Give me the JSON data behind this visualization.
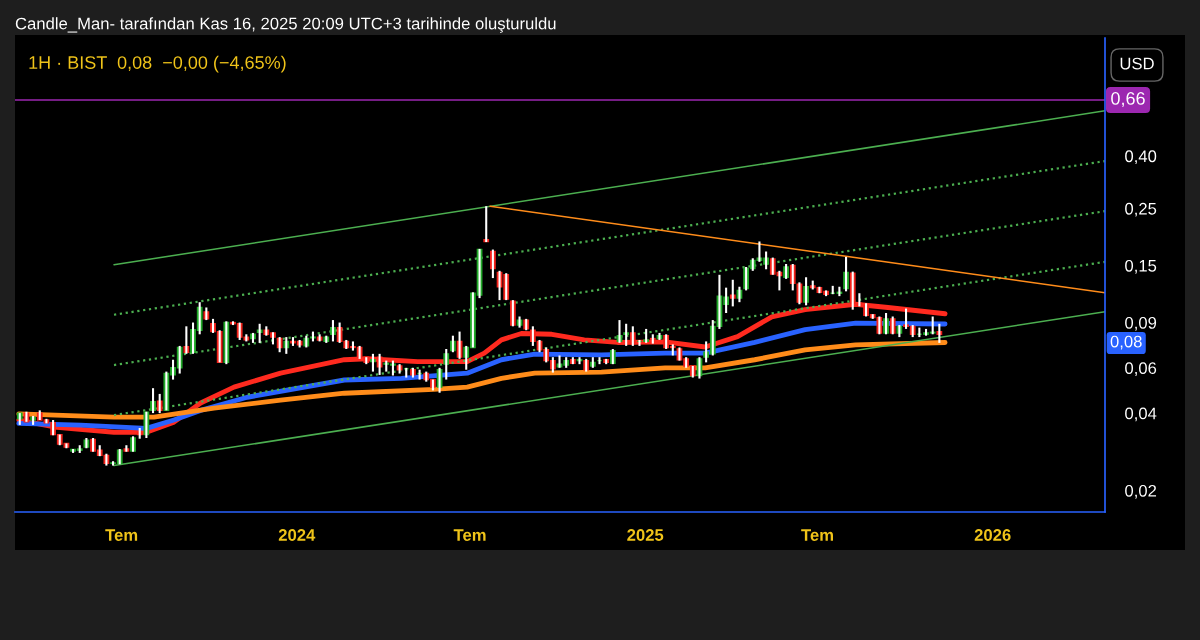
{
  "chart_data": {
    "type": "candlestick",
    "title": "1H · BIST  0,08  −0,00 (−4,65%)",
    "annotations": [
      "Candle_Man- tarafından Kas 16, 2025 20:09 UTC+3 tarihinde oluşturuldu",
      "USD",
      "0,08"
    ],
    "x": [
      "2023-03-16",
      "2023-03-23",
      "2023-03-30",
      "2023-04-06",
      "2023-04-13",
      "2023-04-20",
      "2023-04-27",
      "2023-05-04",
      "2023-05-11",
      "2023-05-18",
      "2023-05-25",
      "2023-06-01",
      "2023-06-08",
      "2023-06-15",
      "2023-06-22",
      "2023-06-29",
      "2023-07-06",
      "2023-07-13",
      "2023-07-20",
      "2023-07-27",
      "2023-08-03",
      "2023-08-10",
      "2023-08-17",
      "2023-08-24",
      "2023-08-31",
      "2023-09-07",
      "2023-09-14",
      "2023-09-21",
      "2023-09-28",
      "2023-10-05",
      "2023-10-12",
      "2023-10-19",
      "2023-10-26",
      "2023-11-02",
      "2023-11-09",
      "2023-11-16",
      "2023-11-23",
      "2023-11-30",
      "2023-12-07",
      "2023-12-14",
      "2023-12-21",
      "2023-12-28",
      "2024-01-04",
      "2024-01-11",
      "2024-01-18",
      "2024-01-25",
      "2024-02-01",
      "2024-02-08",
      "2024-02-15",
      "2024-02-22",
      "2024-02-29",
      "2024-03-07",
      "2024-03-14",
      "2024-03-21",
      "2024-03-28",
      "2024-04-04",
      "2024-04-11",
      "2024-04-18",
      "2024-04-25",
      "2024-05-02",
      "2024-05-09",
      "2024-05-16",
      "2024-05-23",
      "2024-05-30",
      "2024-06-06",
      "2024-06-13",
      "2024-06-20",
      "2024-06-27",
      "2024-07-04",
      "2024-07-11",
      "2024-07-18",
      "2024-07-25",
      "2024-08-01",
      "2024-08-08",
      "2024-08-15",
      "2024-08-22",
      "2024-08-29",
      "2024-09-05",
      "2024-09-12",
      "2024-09-19",
      "2024-09-26",
      "2024-10-03",
      "2024-10-10",
      "2024-10-17",
      "2024-10-24",
      "2024-10-31",
      "2024-11-07",
      "2024-11-14",
      "2024-11-21",
      "2024-11-28",
      "2024-12-05",
      "2024-12-12",
      "2024-12-19",
      "2024-12-26",
      "2025-01-02",
      "2025-01-09",
      "2025-01-16",
      "2025-01-23",
      "2025-01-30",
      "2025-02-06",
      "2025-02-13",
      "2025-02-20",
      "2025-02-27",
      "2025-03-06",
      "2025-03-13",
      "2025-03-20",
      "2025-03-27",
      "2025-04-03",
      "2025-04-10",
      "2025-04-17",
      "2025-04-24",
      "2025-05-01",
      "2025-05-08",
      "2025-05-15",
      "2025-05-22",
      "2025-05-29",
      "2025-06-05",
      "2025-06-12",
      "2025-06-19",
      "2025-06-26",
      "2025-07-03",
      "2025-07-10",
      "2025-07-17",
      "2025-07-24",
      "2025-07-31",
      "2025-08-07",
      "2025-08-14",
      "2025-08-21",
      "2025-08-28",
      "2025-09-04",
      "2025-09-11",
      "2025-09-18",
      "2025-09-25",
      "2025-10-02",
      "2025-10-09",
      "2025-10-16",
      "2025-10-23",
      "2025-10-30",
      "2025-11-06"
    ],
    "ohlc": [
      [
        0.038,
        0.04,
        0.036,
        0.04
      ],
      [
        0.04,
        0.0405,
        0.037,
        0.037
      ],
      [
        0.0376,
        0.039,
        0.036,
        0.0385
      ],
      [
        0.04,
        0.041,
        0.0376,
        0.0376
      ],
      [
        0.0376,
        0.038,
        0.0365,
        0.0367
      ],
      [
        0.0367,
        0.0376,
        0.0328,
        0.033
      ],
      [
        0.033,
        0.033,
        0.03,
        0.0303
      ],
      [
        0.0305,
        0.0305,
        0.0292,
        0.0295
      ],
      [
        0.0285,
        0.029,
        0.028,
        0.0289
      ],
      [
        0.0287,
        0.03,
        0.028,
        0.029
      ],
      [
        0.0295,
        0.032,
        0.0292,
        0.0314
      ],
      [
        0.0316,
        0.032,
        0.0283,
        0.0285
      ],
      [
        0.0287,
        0.03,
        0.0272,
        0.0274
      ],
      [
        0.0274,
        0.0278,
        0.025,
        0.0255
      ],
      [
        0.0255,
        0.026,
        0.025,
        0.0256
      ],
      [
        0.0255,
        0.029,
        0.0253,
        0.0287
      ],
      [
        0.029,
        0.03,
        0.0283,
        0.0285
      ],
      [
        0.0285,
        0.0325,
        0.0283,
        0.032
      ],
      [
        0.0335,
        0.035,
        0.0318,
        0.033
      ],
      [
        0.033,
        0.0405,
        0.032,
        0.0403
      ],
      [
        0.041,
        0.05,
        0.04,
        0.0443
      ],
      [
        0.0445,
        0.0475,
        0.04,
        0.041
      ],
      [
        0.041,
        0.058,
        0.041,
        0.057
      ],
      [
        0.0563,
        0.0645,
        0.054,
        0.06
      ],
      [
        0.06,
        0.073,
        0.057,
        0.072
      ],
      [
        0.0725,
        0.087,
        0.068,
        0.069
      ],
      [
        0.069,
        0.09,
        0.068,
        0.0844
      ],
      [
        0.084,
        0.108,
        0.081,
        0.103
      ],
      [
        0.099,
        0.103,
        0.092,
        0.093
      ],
      [
        0.089,
        0.093,
        0.082,
        0.083
      ],
      [
        0.083,
        0.084,
        0.063,
        0.063
      ],
      [
        0.063,
        0.091,
        0.062,
        0.09
      ],
      [
        0.09,
        0.091,
        0.088,
        0.089
      ],
      [
        0.089,
        0.09,
        0.077,
        0.079
      ],
      [
        0.079,
        0.081,
        0.076,
        0.0771
      ],
      [
        0.078,
        0.082,
        0.075,
        0.081
      ],
      [
        0.0825,
        0.089,
        0.075,
        0.084
      ],
      [
        0.084,
        0.087,
        0.08,
        0.081
      ],
      [
        0.082,
        0.0825,
        0.074,
        0.079
      ],
      [
        0.078,
        0.079,
        0.069,
        0.072
      ],
      [
        0.072,
        0.079,
        0.068,
        0.076
      ],
      [
        0.076,
        0.079,
        0.073,
        0.075
      ],
      [
        0.076,
        0.077,
        0.072,
        0.0737
      ],
      [
        0.073,
        0.08,
        0.072,
        0.078
      ],
      [
        0.0785,
        0.083,
        0.076,
        0.079
      ],
      [
        0.079,
        0.081,
        0.076,
        0.077
      ],
      [
        0.076,
        0.08,
        0.075,
        0.079
      ],
      [
        0.081,
        0.092,
        0.076,
        0.086
      ],
      [
        0.086,
        0.09,
        0.075,
        0.076
      ],
      [
        0.076,
        0.077,
        0.071,
        0.072
      ],
      [
        0.0725,
        0.076,
        0.07,
        0.072
      ],
      [
        0.072,
        0.073,
        0.065,
        0.066
      ],
      [
        0.066,
        0.066,
        0.062,
        0.063
      ],
      [
        0.0635,
        0.068,
        0.058,
        0.0645
      ],
      [
        0.066,
        0.068,
        0.0563,
        0.0605
      ],
      [
        0.062,
        0.064,
        0.058,
        0.0625
      ],
      [
        0.0615,
        0.064,
        0.056,
        0.062
      ],
      [
        0.061,
        0.062,
        0.057,
        0.059
      ],
      [
        0.0595,
        0.06,
        0.055,
        0.0595
      ],
      [
        0.059,
        0.06,
        0.055,
        0.0563
      ],
      [
        0.057,
        0.059,
        0.054,
        0.057
      ],
      [
        0.057,
        0.058,
        0.053,
        0.054
      ],
      [
        0.054,
        0.054,
        0.049,
        0.0505
      ],
      [
        0.0505,
        0.06,
        0.048,
        0.059
      ],
      [
        0.062,
        0.071,
        0.054,
        0.068
      ],
      [
        0.07,
        0.08,
        0.069,
        0.076
      ],
      [
        0.076,
        0.083,
        0.065,
        0.066
      ],
      [
        0.066,
        0.073,
        0.059,
        0.072
      ],
      [
        0.072,
        0.118,
        0.072,
        0.117
      ],
      [
        0.115,
        0.174,
        0.112,
        0.173
      ],
      [
        0.189,
        0.255,
        0.185,
        0.186
      ],
      [
        0.17,
        0.173,
        0.134,
        0.146
      ],
      [
        0.141,
        0.143,
        0.11,
        0.124
      ],
      [
        0.138,
        0.14,
        0.11,
        0.111
      ],
      [
        0.109,
        0.11,
        0.087,
        0.088
      ],
      [
        0.088,
        0.095,
        0.086,
        0.092
      ],
      [
        0.092,
        0.093,
        0.084,
        0.085
      ],
      [
        0.084,
        0.087,
        0.073,
        0.076
      ],
      [
        0.076,
        0.077,
        0.069,
        0.0705
      ],
      [
        0.0705,
        0.072,
        0.063,
        0.064
      ],
      [
        0.064,
        0.066,
        0.0575,
        0.0595
      ],
      [
        0.0605,
        0.067,
        0.06,
        0.062
      ],
      [
        0.0615,
        0.066,
        0.06,
        0.064
      ],
      [
        0.0645,
        0.066,
        0.062,
        0.0625
      ],
      [
        0.064,
        0.066,
        0.062,
        0.0645
      ],
      [
        0.064,
        0.065,
        0.058,
        0.059
      ],
      [
        0.061,
        0.066,
        0.06,
        0.063
      ],
      [
        0.064,
        0.066,
        0.062,
        0.064
      ],
      [
        0.0645,
        0.065,
        0.062,
        0.063
      ],
      [
        0.0625,
        0.071,
        0.062,
        0.07
      ],
      [
        0.076,
        0.092,
        0.075,
        0.08
      ],
      [
        0.081,
        0.089,
        0.073,
        0.082
      ],
      [
        0.082,
        0.087,
        0.073,
        0.0745
      ],
      [
        0.076,
        0.077,
        0.073,
        0.076
      ],
      [
        0.076,
        0.085,
        0.075,
        0.077
      ],
      [
        0.078,
        0.081,
        0.0745,
        0.0775
      ],
      [
        0.078,
        0.082,
        0.077,
        0.08
      ],
      [
        0.08,
        0.081,
        0.071,
        0.072
      ],
      [
        0.0725,
        0.074,
        0.067,
        0.072
      ],
      [
        0.071,
        0.072,
        0.064,
        0.0645
      ],
      [
        0.065,
        0.066,
        0.06,
        0.061
      ],
      [
        0.061,
        0.061,
        0.055,
        0.056
      ],
      [
        0.056,
        0.066,
        0.0545,
        0.065
      ],
      [
        0.066,
        0.076,
        0.063,
        0.069
      ],
      [
        0.068,
        0.092,
        0.067,
        0.087
      ],
      [
        0.087,
        0.138,
        0.085,
        0.114
      ],
      [
        0.106,
        0.123,
        0.098,
        0.113
      ],
      [
        0.115,
        0.132,
        0.104,
        0.112
      ],
      [
        0.112,
        0.124,
        0.108,
        0.12
      ],
      [
        0.122,
        0.148,
        0.12,
        0.146
      ],
      [
        0.146,
        0.16,
        0.143,
        0.157
      ],
      [
        0.157,
        0.186,
        0.155,
        0.16
      ],
      [
        0.152,
        0.17,
        0.145,
        0.16
      ],
      [
        0.159,
        0.161,
        0.138,
        0.139
      ],
      [
        0.141,
        0.143,
        0.12,
        0.137
      ],
      [
        0.135,
        0.152,
        0.133,
        0.148
      ],
      [
        0.15,
        0.152,
        0.12,
        0.128
      ],
      [
        0.127,
        0.129,
        0.106,
        0.108
      ],
      [
        0.108,
        0.135,
        0.105,
        0.124
      ],
      [
        0.125,
        0.131,
        0.121,
        0.123
      ],
      [
        0.123,
        0.124,
        0.117,
        0.118
      ],
      [
        0.119,
        0.12,
        0.114,
        0.116
      ],
      [
        0.117,
        0.125,
        0.116,
        0.117
      ],
      [
        0.117,
        0.124,
        0.114,
        0.118
      ],
      [
        0.122,
        0.162,
        0.119,
        0.141
      ],
      [
        0.14,
        0.142,
        0.101,
        0.107
      ],
      [
        0.107,
        0.117,
        0.104,
        0.104
      ],
      [
        0.105,
        0.107,
        0.095,
        0.096
      ],
      [
        0.0965,
        0.097,
        0.093,
        0.094
      ],
      [
        0.094,
        0.095,
        0.081,
        0.082
      ],
      [
        0.082,
        0.098,
        0.081,
        0.093
      ],
      [
        0.093,
        0.095,
        0.081,
        0.082
      ],
      [
        0.082,
        0.088,
        0.079,
        0.087
      ],
      [
        0.088,
        0.102,
        0.085,
        0.087
      ],
      [
        0.087,
        0.088,
        0.079,
        0.081
      ],
      [
        0.081,
        0.086,
        0.079,
        0.081
      ],
      [
        0.081,
        0.085,
        0.08,
        0.082
      ],
      [
        0.082,
        0.095,
        0.081,
        0.0825
      ],
      [
        0.083,
        0.089,
        0.075,
        0.081
      ]
    ],
    "colors": [
      "#22ab2a",
      "#f5231b",
      "#22ab2a",
      "#f5231b",
      "#f5231b",
      "#f5231b",
      "#f5231b",
      "#f5231b",
      "#22ab2a",
      "#22ab2a",
      "#22ab2a",
      "#f5231b",
      "#f5231b",
      "#f5231b",
      "#22ab2a",
      "#22ab2a",
      "#f5231b",
      "#22ab2a",
      "#f5231b",
      "#22ab2a",
      "#22ab2a",
      "#f5231b",
      "#22ab2a",
      "#22ab2a",
      "#22ab2a",
      "#f5231b",
      "#22ab2a",
      "#22ab2a",
      "#f5231b",
      "#f5231b",
      "#f5231b",
      "#22ab2a",
      "#f5231b",
      "#f5231b",
      "#f5231b",
      "#22ab2a",
      "#22ab2a",
      "#f5231b",
      "#f5231b",
      "#f5231b",
      "#22ab2a",
      "#f5231b",
      "#f5231b",
      "#22ab2a",
      "#22ab2a",
      "#f5231b",
      "#22ab2a",
      "#22ab2a",
      "#f5231b",
      "#f5231b",
      "#f5231b",
      "#f5231b",
      "#f5231b",
      "#22ab2a",
      "#f5231b",
      "#22ab2a",
      "#22ab2a",
      "#f5231b",
      "#22ab2a",
      "#f5231b",
      "#22ab2a",
      "#f5231b",
      "#f5231b",
      "#22ab2a",
      "#22ab2a",
      "#22ab2a",
      "#f5231b",
      "#22ab2a",
      "#22ab2a",
      "#22ab2a",
      "#f5231b",
      "#f5231b",
      "#f5231b",
      "#f5231b",
      "#f5231b",
      "#22ab2a",
      "#f5231b",
      "#f5231b",
      "#f5231b",
      "#f5231b",
      "#f5231b",
      "#22ab2a",
      "#22ab2a",
      "#f5231b",
      "#22ab2a",
      "#f5231b",
      "#22ab2a",
      "#22ab2a",
      "#f5231b",
      "#22ab2a",
      "#22ab2a",
      "#22ab2a",
      "#f5231b",
      "#22ab2a",
      "#22ab2a",
      "#f5231b",
      "#22ab2a",
      "#f5231b",
      "#f5231b",
      "#f5231b",
      "#f5231b",
      "#f5231b",
      "#22ab2a",
      "#22ab2a",
      "#22ab2a",
      "#22ab2a",
      "#22ab2a",
      "#f5231b",
      "#22ab2a",
      "#22ab2a",
      "#22ab2a",
      "#22ab2a",
      "#22ab2a",
      "#f5231b",
      "#f5231b",
      "#22ab2a",
      "#f5231b",
      "#f5231b",
      "#22ab2a",
      "#f5231b",
      "#f5231b",
      "#f5231b",
      "#22ab2a",
      "#22ab2a",
      "#22ab2a",
      "#f5231b",
      "#f5231b",
      "#f5231b",
      "#f5231b",
      "#f5231b",
      "#22ab2a",
      "#f5231b",
      "#22ab2a",
      "#f5231b",
      "#f5231b",
      "#22ab2a",
      "#22ab2a",
      "#22ab2a",
      "#f5231b"
    ],
    "series": [
      {
        "type": "line",
        "color": "#ff2a1f",
        "x": [
          "2023-03-15",
          "2023-04-24",
          "2023-06-23",
          "2023-07-27",
          "2023-08-25",
          "2023-09-22",
          "2023-10-27",
          "2023-12-15",
          "2024-02-20",
          "2024-03-15",
          "2024-05-07",
          "2024-06-28",
          "2024-07-16",
          "2024-08-03",
          "2024-08-24",
          "2024-09-25",
          "2024-10-29",
          "2024-12-03",
          "2025-01-22",
          "2025-03-05",
          "2025-04-08",
          "2025-05-14",
          "2025-06-18",
          "2025-08-10",
          "2025-09-13",
          "2025-11-12"
        ],
        "values": [
          0.0376,
          0.0352,
          0.0337,
          0.0337,
          0.0369,
          0.0438,
          0.0505,
          0.0572,
          0.0645,
          0.0651,
          0.0634,
          0.0634,
          0.0684,
          0.0771,
          0.0816,
          0.081,
          0.0771,
          0.0753,
          0.0757,
          0.0723,
          0.0793,
          0.0947,
          0.101,
          0.106,
          0.103,
          0.0974
        ]
      },
      {
        "type": "line",
        "color": "#2962ff",
        "x": [
          "2023-03-15",
          "2023-05-19",
          "2023-07-27",
          "2023-08-25",
          "2023-09-22",
          "2023-11-10",
          "2024-02-20",
          "2024-04-20",
          "2024-06-28",
          "2024-08-03",
          "2024-09-07",
          "2024-11-16",
          "2025-01-22",
          "2025-03-05",
          "2025-04-26",
          "2025-06-18",
          "2025-08-10",
          "2025-11-12"
        ],
        "values": [
          0.0365,
          0.0359,
          0.0349,
          0.0376,
          0.041,
          0.0461,
          0.0538,
          0.0546,
          0.0572,
          0.0645,
          0.0678,
          0.0674,
          0.0684,
          0.0684,
          0.0753,
          0.0844,
          0.0895,
          0.0888
        ]
      },
      {
        "type": "line",
        "color": "#ff8c1a",
        "x": [
          "2023-03-15",
          "2023-06-23",
          "2023-08-04",
          "2023-10-06",
          "2023-12-15",
          "2024-02-20",
          "2024-05-24",
          "2024-06-28",
          "2024-08-03",
          "2024-09-07",
          "2024-11-16",
          "2025-01-22",
          "2025-03-05",
          "2025-04-26",
          "2025-06-18",
          "2025-08-10",
          "2025-11-12"
        ],
        "values": [
          0.0397,
          0.0386,
          0.0386,
          0.0418,
          0.0449,
          0.0478,
          0.0495,
          0.0505,
          0.0546,
          0.0572,
          0.0577,
          0.06,
          0.06,
          0.0645,
          0.0705,
          0.0737,
          0.0753
        ]
      },
      {
        "type": "line",
        "color": "#4caf50",
        "line_style": "solid",
        "x": [
          "2023-06-23",
          "2026-04-29"
        ],
        "values": [
          0.151,
          0.599
        ]
      },
      {
        "type": "line",
        "color": "#4caf50",
        "line_style": "dotted",
        "x": [
          "2023-06-23",
          "2026-04-29"
        ],
        "values": [
          0.0965,
          0.382
        ]
      },
      {
        "type": "line",
        "color": "#4caf50",
        "line_style": "dotted",
        "x": [
          "2023-06-23",
          "2026-04-29"
        ],
        "values": [
          0.0615,
          0.244
        ]
      },
      {
        "type": "line",
        "color": "#4caf50",
        "line_style": "dotted",
        "x": [
          "2023-06-23",
          "2026-04-29"
        ],
        "values": [
          0.0393,
          0.155
        ]
      },
      {
        "type": "line",
        "color": "#4caf50",
        "line_style": "solid",
        "x": [
          "2023-06-23",
          "2026-04-29"
        ],
        "values": [
          0.025,
          0.0991
        ]
      },
      {
        "type": "line",
        "color": "#ff8c1a",
        "line_style": "solid",
        "x": [
          "2024-07-22",
          "2026-04-29"
        ],
        "values": [
          0.255,
          0.1176
        ]
      }
    ],
    "ref_lines": [
      {
        "axis": "y",
        "value": 0.66,
        "label": "0,66",
        "color": "#9c27b0"
      }
    ],
    "log": "y",
    "xlim": [
      "2023-03-11",
      "2026-04-29"
    ],
    "xticks": [
      {
        "value": "2023-07-01",
        "label": "Tem"
      },
      {
        "value": "2024-01-01",
        "label": "2024"
      },
      {
        "value": "2024-07-01",
        "label": "Tem"
      },
      {
        "value": "2025-01-01",
        "label": "2025"
      },
      {
        "value": "2025-07-01",
        "label": "Tem"
      },
      {
        "value": "2026-01-01",
        "label": "2026"
      }
    ],
    "ylim": [
      0.0165,
      1.15
    ],
    "yticks": [
      {
        "value": 0.02,
        "label": "0,02"
      },
      {
        "value": 0.04,
        "label": "0,04"
      },
      {
        "value": 0.06,
        "label": "0,06"
      },
      {
        "value": 0.09,
        "label": "0,09"
      },
      {
        "value": 0.15,
        "label": "0,15"
      },
      {
        "value": 0.25,
        "label": "0,25"
      },
      {
        "value": 0.4,
        "label": "0,40"
      }
    ],
    "grid": false,
    "legend": false
  }
}
